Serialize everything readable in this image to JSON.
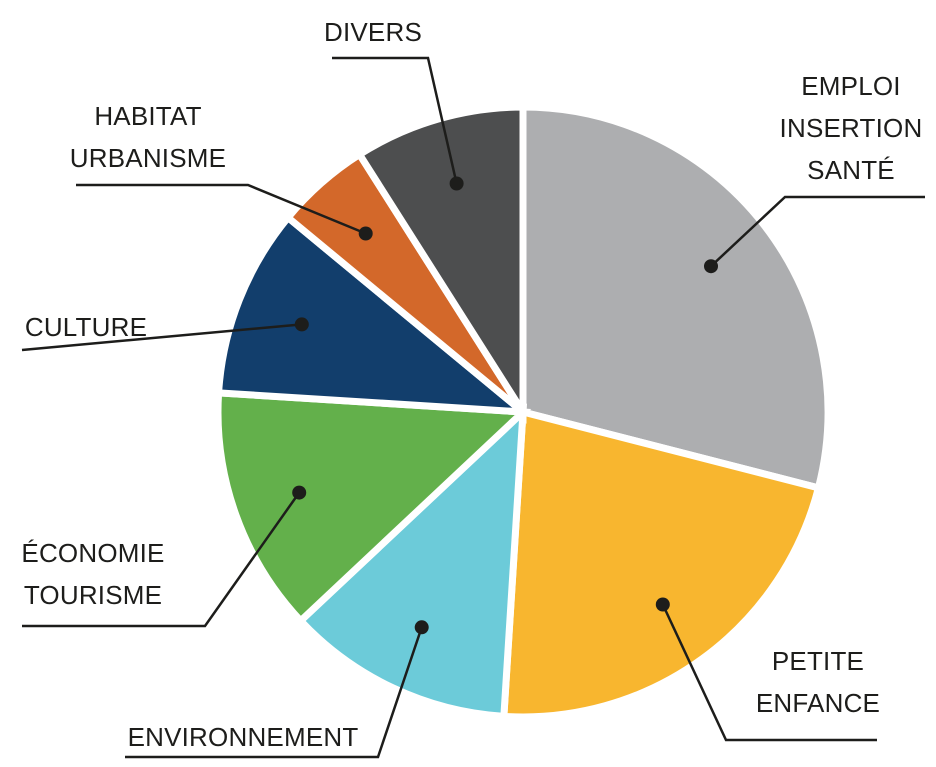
{
  "chart_data": {
    "type": "pie",
    "categories": [
      "EMPLOI INSERTION SANTÉ",
      "PETITE ENFANCE",
      "ENVIRONNEMENT",
      "ÉCONOMIE TOURISME",
      "CULTURE",
      "HABITAT URBANISME",
      "DIVERS"
    ],
    "values": [
      29,
      22,
      12,
      13,
      10,
      5,
      9
    ],
    "colors": [
      "#adaeb0",
      "#f8b62f",
      "#6ccbd9",
      "#63b04b",
      "#123e6c",
      "#d3682a",
      "#4d4e4f"
    ],
    "labels": {
      "emploi": [
        "EMPLOI",
        "INSERTION",
        "SANTÉ"
      ],
      "petite": [
        "PETITE",
        "ENFANCE"
      ],
      "env": [
        "ENVIRONNEMENT"
      ],
      "eco": [
        "ÉCONOMIE",
        "TOURISME"
      ],
      "culture": [
        "CULTURE"
      ],
      "habitat": [
        "HABITAT",
        "URBANISME"
      ],
      "divers": [
        "DIVERS"
      ]
    }
  }
}
